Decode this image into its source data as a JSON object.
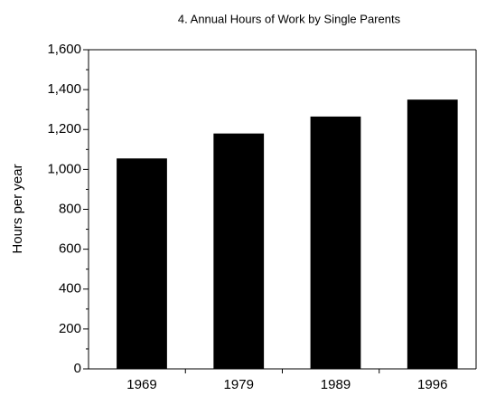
{
  "chart_data": {
    "type": "bar",
    "title": "4. Annual Hours of Work by Single Parents",
    "ylabel": "Hours per year",
    "categories": [
      "1969",
      "1979",
      "1989",
      "1996"
    ],
    "values": [
      1055,
      1180,
      1265,
      1350
    ],
    "color": "#000000",
    "ylim": [
      0,
      1600
    ],
    "yticks": [
      0,
      200,
      400,
      600,
      800,
      {
        "value": 1000,
        "label": "1,000"
      },
      {
        "value": 1200,
        "label": "1,200"
      },
      {
        "value": 1400,
        "label": "1,400"
      },
      {
        "value": 1600,
        "label": "1,600"
      }
    ],
    "grid": false
  }
}
